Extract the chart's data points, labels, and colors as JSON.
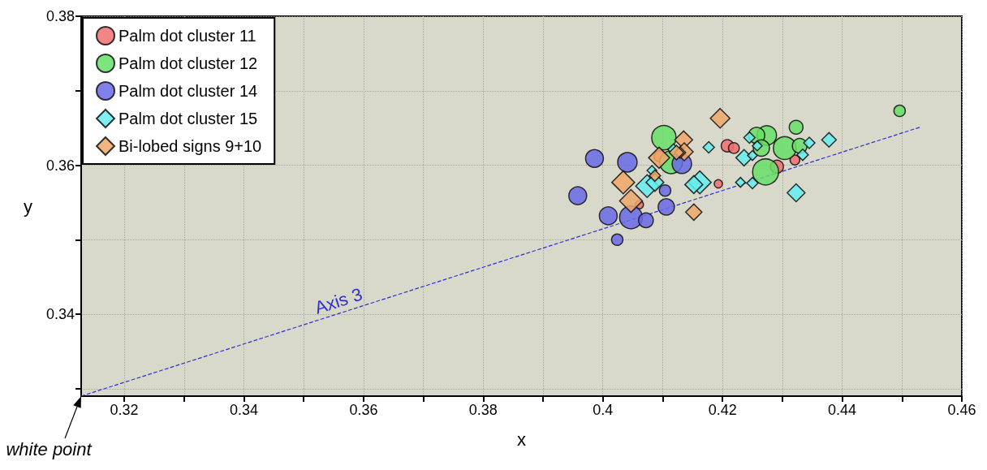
{
  "chart_data": {
    "type": "bubble",
    "xlabel": "x",
    "ylabel": "y",
    "xlim": [
      0.3128,
      0.46
    ],
    "xticks": [
      0.32,
      {
        "value": 0.33,
        "label": null
      },
      0.34,
      {
        "value": 0.35,
        "label": null
      },
      0.36,
      {
        "value": 0.37,
        "label": null
      },
      0.38,
      {
        "value": 0.39,
        "label": null
      },
      0.4,
      {
        "value": 0.41,
        "label": null
      },
      0.42,
      {
        "value": 0.43,
        "label": null
      },
      0.44,
      {
        "value": 0.45,
        "label": null
      },
      0.46
    ],
    "ylim": [
      0.329,
      0.38
    ],
    "yticks": [
      {
        "value": 0.33,
        "label": null
      },
      0.34,
      {
        "value": 0.35,
        "label": null
      },
      0.36,
      {
        "value": 0.37,
        "label": null
      },
      0.38
    ],
    "grid": true,
    "legend": "top left",
    "series": [
      {
        "name": "Palm dot cluster 11",
        "color": "#f07070",
        "marker": "circle",
        "x": [
          0.4193,
          0.4208,
          0.4219,
          0.4291,
          0.4321,
          0.4061,
          0.4095
        ],
        "values": [
          0.3575,
          0.3626,
          0.3623,
          0.3598,
          0.3607,
          0.3547,
          0.3612
        ],
        "sizes": [
          0.1,
          0.22,
          0.17,
          0.25,
          0.14,
          0.1,
          0.19
        ]
      },
      {
        "name": "Palm dot cluster 12",
        "color": "#66e066",
        "marker": "circle",
        "x": [
          0.4496,
          0.4323,
          0.4274,
          0.4257,
          0.4265,
          0.4304,
          0.4329,
          0.4272,
          0.4102,
          0.4114
        ],
        "values": [
          0.3673,
          0.3651,
          0.364,
          0.364,
          0.3623,
          0.3623,
          0.3626,
          0.3591,
          0.3637,
          0.3604
        ],
        "sizes": [
          0.19,
          0.28,
          0.56,
          0.39,
          0.39,
          0.77,
          0.32,
          1,
          0.88,
          0.77
        ]
      },
      {
        "name": "Palm dot cluster 14",
        "color": "#6a6ae8",
        "marker": "circle",
        "x": [
          0.3986,
          0.4041,
          0.3958,
          0.4009,
          0.4047,
          0.4072,
          0.4024,
          0.4106,
          0.4104,
          0.4132
        ],
        "values": [
          0.3609,
          0.3604,
          0.3559,
          0.3532,
          0.353,
          0.3526,
          0.35,
          0.3544,
          0.3566,
          0.3602
        ],
        "sizes": [
          0.47,
          0.56,
          0.47,
          0.47,
          0.77,
          0.32,
          0.19,
          0.39,
          0.19,
          0.56
        ]
      },
      {
        "name": "Palm dot cluster 15",
        "color": "#66eeee",
        "marker": "diamond",
        "x": [
          0.4378,
          0.4345,
          0.4334,
          0.4323,
          0.425,
          0.423,
          0.4236,
          0.425,
          0.4245,
          0.4258,
          0.4177,
          0.4162,
          0.4152,
          0.4074,
          0.4087,
          0.4082,
          0.4118
        ],
        "values": [
          0.3634,
          0.363,
          0.3614,
          0.3563,
          0.3576,
          0.3577,
          0.361,
          0.3613,
          0.3637,
          0.3626,
          0.3624,
          0.3577,
          0.3574,
          0.3572,
          0.3577,
          0.3593,
          0.3621
        ],
        "sizes": [
          0.2,
          0.12,
          0.12,
          0.3,
          0.12,
          0.09,
          0.25,
          0.09,
          0.12,
          0.09,
          0.12,
          0.49,
          0.3,
          0.49,
          0.3,
          0.09,
          0.12
        ]
      },
      {
        "name": "Bi-lobed signs 9+10",
        "color": "#f0a868",
        "marker": "diamond",
        "x": [
          0.4196,
          0.4152,
          0.4135,
          0.4136,
          0.4129,
          0.4034,
          0.4047,
          0.4094,
          0.4087,
          0.4123
        ],
        "values": [
          0.3663,
          0.3537,
          0.3634,
          0.3618,
          0.3617,
          0.3577,
          0.3552,
          0.361,
          0.3586,
          0.3617
        ],
        "sizes": [
          0.36,
          0.25,
          0.3,
          0.3,
          0.12,
          0.49,
          0.49,
          0.42,
          0.12,
          0.2
        ]
      },
      {
        "type": "line",
        "name": "Axis 3",
        "color": "#3030d0",
        "line_style": "dashed",
        "marker": "none",
        "x": [
          0.3128,
          0.453
        ],
        "values": [
          0.329,
          0.3651
        ]
      }
    ],
    "annotations": [
      {
        "text": "white point",
        "x": 0.3128,
        "y": 0.329
      }
    ]
  }
}
